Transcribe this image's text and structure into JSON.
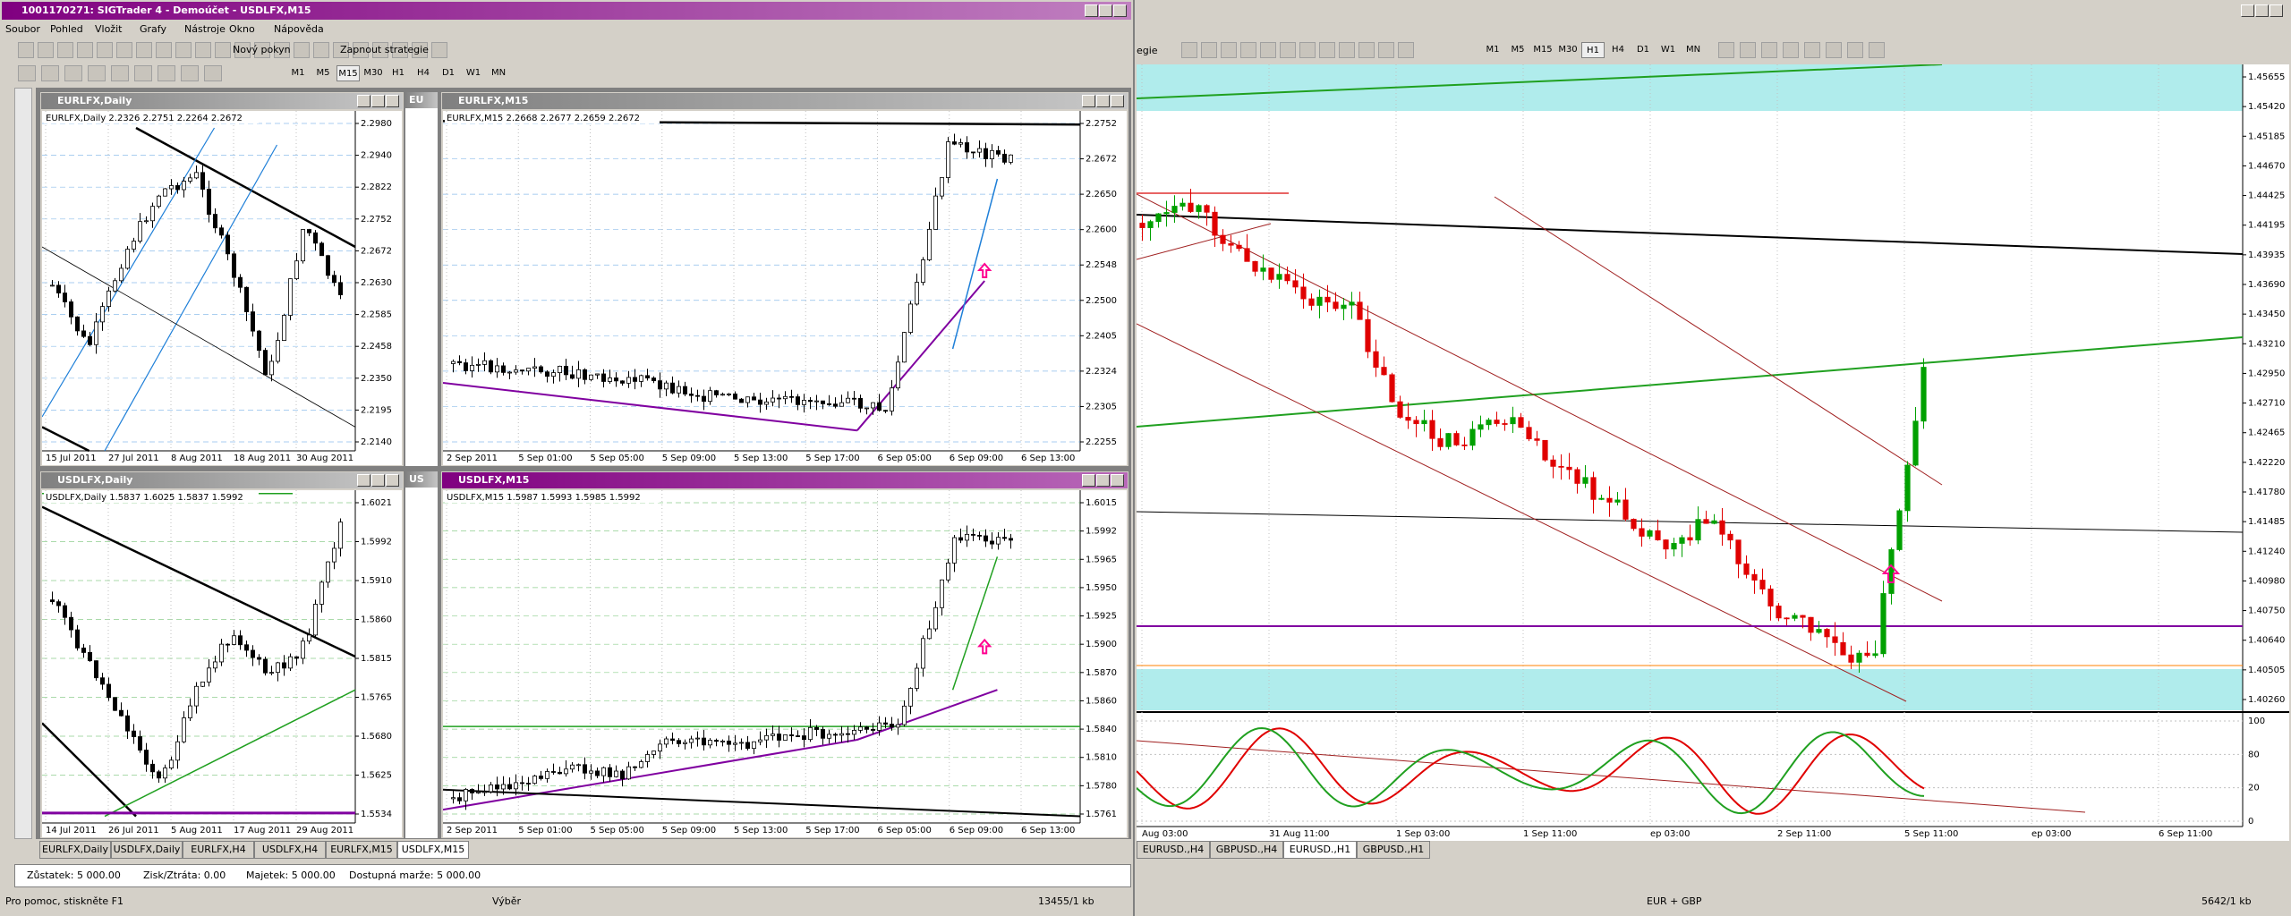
{
  "left_window": {
    "title": "1001170271: SIGTrader 4 - Demoúčet - USDLFX,M15",
    "menu": [
      "Soubor",
      "Pohled",
      "Vložit",
      "Grafy",
      "Nástroje",
      "Okno",
      "Nápověda"
    ],
    "toolbar": {
      "new_order": "Nový pokyn",
      "strategies": "Zapnout strategie",
      "timeframes": [
        "M1",
        "M5",
        "M15",
        "M30",
        "H1",
        "H4",
        "D1",
        "W1",
        "MN"
      ]
    },
    "stubs": [
      "EU",
      "US"
    ],
    "charts": [
      {
        "title": "EURLFX,Daily",
        "info": "EURLFX,Daily  2.2326 2.2751 2.2264 2.2672",
        "prices": [
          "2.2980",
          "2.2940",
          "2.2822",
          "2.2752",
          "2.2672",
          "2.2630",
          "2.2585",
          "2.2458",
          "2.2350",
          "2.2195",
          "2.2140"
        ],
        "times": [
          "15 Jul 2011",
          "27 Jul 2011",
          "8 Aug 2011",
          "18 Aug 2011",
          "30 Aug 2011"
        ]
      },
      {
        "title": "EURLFX,M15",
        "info": "EURLFX,M15  2.2668 2.2677 2.2659 2.2672",
        "prices": [
          "2.2752",
          "2.2672",
          "2.2650",
          "2.2600",
          "2.2548",
          "2.2500",
          "2.2405",
          "2.2324",
          "2.2305",
          "2.2255"
        ],
        "times": [
          "2 Sep 2011",
          "5 Sep 01:00",
          "5 Sep 05:00",
          "5 Sep 09:00",
          "5 Sep 13:00",
          "5 Sep 17:00",
          "6 Sep 05:00",
          "6 Sep 09:00",
          "6 Sep 13:00"
        ]
      },
      {
        "title": "USDLFX,Daily",
        "info": "USDLFX,Daily  1.5837 1.6025 1.5837 1.5992",
        "prices": [
          "1.6021",
          "1.5992",
          "1.5910",
          "1.5860",
          "1.5815",
          "1.5765",
          "1.5680",
          "1.5625",
          "1.5534"
        ],
        "times": [
          "14 Jul 2011",
          "26 Jul 2011",
          "5 Aug 2011",
          "17 Aug 2011",
          "29 Aug 2011"
        ]
      },
      {
        "title": "USDLFX,M15",
        "info": "USDLFX,M15  1.5987 1.5993 1.5985 1.5992",
        "prices": [
          "1.6015",
          "1.5992",
          "1.5965",
          "1.5950",
          "1.5925",
          "1.5900",
          "1.5870",
          "1.5860",
          "1.5840",
          "1.5810",
          "1.5780",
          "1.5761"
        ],
        "times": [
          "2 Sep 2011",
          "5 Sep 01:00",
          "5 Sep 05:00",
          "5 Sep 09:00",
          "5 Sep 13:00",
          "5 Sep 17:00",
          "6 Sep 05:00",
          "6 Sep 09:00",
          "6 Sep 13:00"
        ]
      }
    ],
    "tabs": [
      "EURLFX,Daily",
      "USDLFX,Daily",
      "EURLFX,H4",
      "USDLFX,H4",
      "EURLFX,M15",
      "USDLFX,M15"
    ],
    "terminal": [
      "Zůstatek: 5 000.00",
      "Zisk/Ztráta: 0.00",
      "Majetek: 5 000.00",
      "Dostupná marže: 5 000.00"
    ],
    "status": {
      "help": "Pro pomoc, stiskněte F1",
      "selection": "Výběr",
      "traffic": "13455/1 kb"
    }
  },
  "right_window": {
    "toolbar_fragment": "egie",
    "timeframes": [
      "M1",
      "M5",
      "M15",
      "M30",
      "H1",
      "H4",
      "D1",
      "W1",
      "MN"
    ],
    "prices": [
      "1.45655",
      "1.45420",
      "1.45185",
      "1.44670",
      "1.44425",
      "1.44195",
      "1.43935",
      "1.43690",
      "1.43450",
      "1.43210",
      "1.42950",
      "1.42710",
      "1.42465",
      "1.42220",
      "1.41780",
      "1.41485",
      "1.41240",
      "1.40980",
      "1.40750",
      "1.40640",
      "1.40505",
      "1.40260"
    ],
    "oscillator_levels": [
      "100",
      "80",
      "20",
      "0"
    ],
    "times": [
      "Aug 03:00",
      "31 Aug 11:00",
      "1 Sep 03:00",
      "1 Sep 11:00",
      "ep 03:00",
      "2 Sep 11:00",
      "5 Sep 11:00",
      "ep 03:00",
      "6 Sep 11:00"
    ],
    "tabs": [
      "EURUSD.,H4",
      "GBPUSD.,H4",
      "EURUSD.,H1",
      "GBPUSD.,H1"
    ],
    "status": {
      "symbols": "EUR + GBP",
      "traffic": "5642/1 kb"
    }
  }
}
